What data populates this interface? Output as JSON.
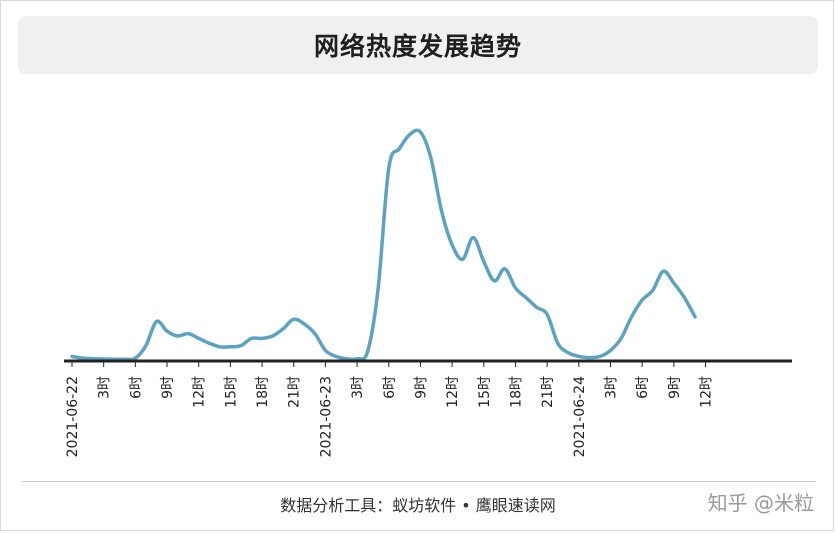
{
  "title": "网络热度发展趋势",
  "source_label": "数据分析工具：蚁坊软件 • 鹰眼速读网",
  "watermark": "知乎 @米粒",
  "colors": {
    "line": "#5ba3c0",
    "axis": "#222222",
    "text": "#222222"
  },
  "chart_data": {
    "type": "line",
    "title": "网络热度发展趋势",
    "xlabel": "",
    "ylabel": "",
    "grid": false,
    "x_range_hours": [
      0,
      68
    ],
    "ylim": [
      0,
      100
    ],
    "x_ticks": [
      {
        "label": "2021-06-22",
        "hour": 0
      },
      {
        "label": "3时",
        "hour": 3
      },
      {
        "label": "6时",
        "hour": 6
      },
      {
        "label": "9时",
        "hour": 9
      },
      {
        "label": "12时",
        "hour": 12
      },
      {
        "label": "15时",
        "hour": 15
      },
      {
        "label": "18时",
        "hour": 18
      },
      {
        "label": "21时",
        "hour": 21
      },
      {
        "label": "2021-06-23",
        "hour": 24
      },
      {
        "label": "3时",
        "hour": 27
      },
      {
        "label": "6时",
        "hour": 30
      },
      {
        "label": "9时",
        "hour": 33
      },
      {
        "label": "12时",
        "hour": 36
      },
      {
        "label": "15时",
        "hour": 39
      },
      {
        "label": "18时",
        "hour": 42
      },
      {
        "label": "21时",
        "hour": 45
      },
      {
        "label": "2021-06-24",
        "hour": 48
      },
      {
        "label": "3时",
        "hour": 51
      },
      {
        "label": "6时",
        "hour": 54
      },
      {
        "label": "9时",
        "hour": 57
      },
      {
        "label": "12时",
        "hour": 60
      }
    ],
    "series": [
      {
        "values": [
          [
            0,
            1.5
          ],
          [
            1,
            0.8
          ],
          [
            3,
            0.4
          ],
          [
            5,
            0.3
          ],
          [
            6,
            0.8
          ],
          [
            7,
            6
          ],
          [
            8,
            16
          ],
          [
            9,
            12
          ],
          [
            10,
            10
          ],
          [
            11,
            11
          ],
          [
            12,
            9
          ],
          [
            13,
            7
          ],
          [
            14,
            5.5
          ],
          [
            15,
            5.5
          ],
          [
            16,
            6
          ],
          [
            17,
            9
          ],
          [
            18,
            9
          ],
          [
            19,
            10
          ],
          [
            20,
            13
          ],
          [
            21,
            17
          ],
          [
            22,
            15
          ],
          [
            23,
            11
          ],
          [
            24,
            4
          ],
          [
            25,
            1.5
          ],
          [
            26,
            0.5
          ],
          [
            27,
            0.5
          ],
          [
            28,
            3.5
          ],
          [
            29,
            30
          ],
          [
            30,
            80
          ],
          [
            31,
            88
          ],
          [
            32,
            94
          ],
          [
            33,
            95
          ],
          [
            34,
            84
          ],
          [
            35,
            62
          ],
          [
            36,
            48
          ],
          [
            37,
            42
          ],
          [
            38,
            51
          ],
          [
            39,
            41
          ],
          [
            40,
            33
          ],
          [
            41,
            38
          ],
          [
            42,
            30
          ],
          [
            43,
            26
          ],
          [
            44,
            22
          ],
          [
            45,
            19
          ],
          [
            46,
            7
          ],
          [
            47,
            3
          ],
          [
            48,
            1.5
          ],
          [
            49,
            1
          ],
          [
            50,
            1.5
          ],
          [
            51,
            4
          ],
          [
            52,
            9
          ],
          [
            53,
            18
          ],
          [
            54,
            25
          ],
          [
            55,
            29
          ],
          [
            56,
            37
          ],
          [
            57,
            32
          ],
          [
            58,
            26
          ],
          [
            59,
            18
          ]
        ]
      }
    ]
  }
}
